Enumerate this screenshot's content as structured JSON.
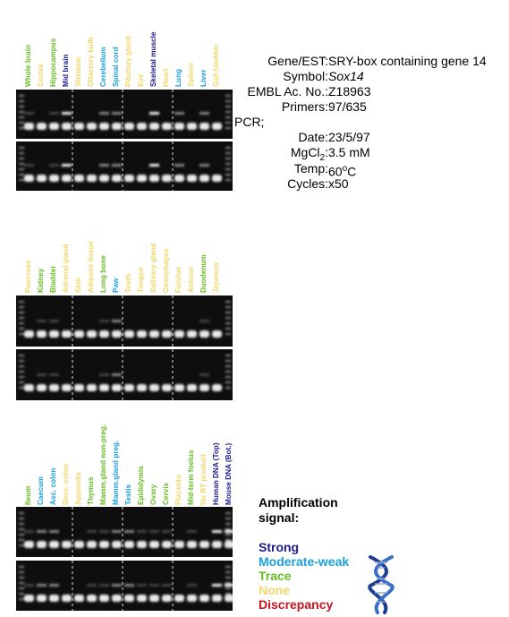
{
  "colors": {
    "strong": "#1c1c8c",
    "moderate_weak": "#1a9fd8",
    "trace": "#66bb22",
    "none": "#f2d66a",
    "discrepancy": "#c8141e"
  },
  "panels": [
    {
      "lanes": [
        {
          "label": "Whole brain",
          "signal": "trace"
        },
        {
          "label": "Cortex",
          "signal": "none"
        },
        {
          "label": "Hippocampus",
          "signal": "trace"
        },
        {
          "label": "Mid brain",
          "signal": "strong"
        },
        {
          "label": "Striatum",
          "signal": "none"
        },
        {
          "label": "Olfactory bulb",
          "signal": "none"
        },
        {
          "label": "Cerebellum",
          "signal": "moderate_weak"
        },
        {
          "label": "Spinal cord",
          "signal": "moderate_weak"
        },
        {
          "label": "Pituitary gland",
          "signal": "none"
        },
        {
          "label": "Eye",
          "signal": "none"
        },
        {
          "label": "Skeletal muscle",
          "signal": "strong"
        },
        {
          "label": "Heart",
          "signal": "none"
        },
        {
          "label": "Lung",
          "signal": "moderate_weak"
        },
        {
          "label": "Spleen",
          "signal": "none"
        },
        {
          "label": "Liver",
          "signal": "moderate_weak"
        },
        {
          "label": "Gall bladder",
          "signal": "none"
        }
      ]
    },
    {
      "lanes": [
        {
          "label": "Pancreas",
          "signal": "none"
        },
        {
          "label": "Kidney",
          "signal": "trace"
        },
        {
          "label": "Bladder",
          "signal": "trace"
        },
        {
          "label": "Adrenal gland",
          "signal": "none"
        },
        {
          "label": "Skin",
          "signal": "none"
        },
        {
          "label": "Adipose tissue",
          "signal": "none"
        },
        {
          "label": "Long bone",
          "signal": "trace"
        },
        {
          "label": "Paw",
          "signal": "moderate_weak"
        },
        {
          "label": "Teeth",
          "signal": "none"
        },
        {
          "label": "Tongue",
          "signal": "none"
        },
        {
          "label": "Salivary gland",
          "signal": "none"
        },
        {
          "label": "Oesophagus",
          "signal": "none"
        },
        {
          "label": "Fundus",
          "signal": "none"
        },
        {
          "label": "Antrum",
          "signal": "none"
        },
        {
          "label": "Duodenum",
          "signal": "trace"
        },
        {
          "label": "Jejunum",
          "signal": "none"
        }
      ]
    },
    {
      "lanes": [
        {
          "label": "Ileum",
          "signal": "trace"
        },
        {
          "label": "Caecum",
          "signal": "moderate_weak"
        },
        {
          "label": "Asc. colon",
          "signal": "moderate_weak"
        },
        {
          "label": "Desc. colon",
          "signal": "none"
        },
        {
          "label": "Appendix",
          "signal": "none"
        },
        {
          "label": "Thymus",
          "signal": "trace"
        },
        {
          "label": "Mamm.gland non-preg.",
          "signal": "trace"
        },
        {
          "label": "Mamm.gland preg.",
          "signal": "moderate_weak"
        },
        {
          "label": "Testis",
          "signal": "moderate_weak"
        },
        {
          "label": "Epididymis",
          "signal": "trace"
        },
        {
          "label": "Ovary",
          "signal": "trace"
        },
        {
          "label": "Cervix",
          "signal": "trace"
        },
        {
          "label": "Placenta",
          "signal": "none"
        },
        {
          "label": "Mid-term foetus",
          "signal": "trace"
        },
        {
          "label": "No RT product",
          "signal": "none"
        },
        {
          "label": "Human DNA (Top)",
          "signal": "strong"
        },
        {
          "label": "Mouse DNA (Bot.)",
          "signal": "strong"
        }
      ]
    }
  ],
  "info": {
    "gene_key": "Gene/EST:",
    "gene_val": "SRY-box containing gene 14",
    "symbol_key": "Symbol:",
    "symbol_val": "Sox14",
    "embl_key": "EMBL Ac. No.:",
    "embl_val": "Z18963",
    "primers_key": "Primers:",
    "primers_val": "97/635",
    "pcr_key": "PCR;",
    "date_key": "Date:",
    "date_val": "23/5/97",
    "mgcl_key_main": "MgCl",
    "mgcl_key_sub": "2",
    "mgcl_key_colon": ":",
    "mgcl_val": "3.5 mM",
    "temp_key": "Temp:",
    "temp_val_num": "60",
    "temp_val_sup": "o",
    "temp_val_unit": "C",
    "cycles_key": "Cycles:",
    "cycles_val": "x50"
  },
  "legend": {
    "title_line1": "Amplification",
    "title_line2": "signal:",
    "strong": "Strong",
    "moderate_weak": "Moderate-weak",
    "trace": "Trace",
    "none": "None",
    "discrepancy": "Discrepancy"
  }
}
